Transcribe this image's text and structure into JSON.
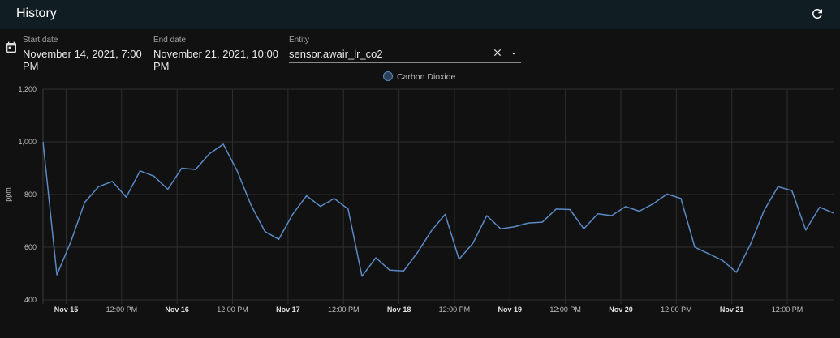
{
  "header": {
    "title": "History"
  },
  "filters": [
    {
      "label": "Start date",
      "value": "November 14, 2021, 7:00 PM"
    },
    {
      "label": "End date",
      "value": "November 21, 2021, 10:00 PM"
    },
    {
      "label": "Entity",
      "value": "sensor.awair_lr_co2"
    }
  ],
  "chart_data": {
    "type": "line",
    "ylabel": "ppm",
    "x": [
      "2021-11-14T19:00",
      "2021-11-14T22:00",
      "2021-11-15T01:00",
      "2021-11-15T04:00",
      "2021-11-15T07:00",
      "2021-11-15T10:00",
      "2021-11-15T13:00",
      "2021-11-15T16:00",
      "2021-11-15T19:00",
      "2021-11-15T22:00",
      "2021-11-16T01:00",
      "2021-11-16T04:00",
      "2021-11-16T07:00",
      "2021-11-16T10:00",
      "2021-11-16T13:00",
      "2021-11-16T16:00",
      "2021-11-16T19:00",
      "2021-11-16T22:00",
      "2021-11-17T01:00",
      "2021-11-17T04:00",
      "2021-11-17T07:00",
      "2021-11-17T10:00",
      "2021-11-17T13:00",
      "2021-11-17T16:00",
      "2021-11-17T19:00",
      "2021-11-17T22:00",
      "2021-11-18T01:00",
      "2021-11-18T04:00",
      "2021-11-18T07:00",
      "2021-11-18T10:00",
      "2021-11-18T13:00",
      "2021-11-18T16:00",
      "2021-11-18T19:00",
      "2021-11-18T22:00",
      "2021-11-19T01:00",
      "2021-11-19T04:00",
      "2021-11-19T07:00",
      "2021-11-19T10:00",
      "2021-11-19T13:00",
      "2021-11-19T16:00",
      "2021-11-19T19:00",
      "2021-11-19T22:00",
      "2021-11-20T01:00",
      "2021-11-20T04:00",
      "2021-11-20T07:00",
      "2021-11-20T10:00",
      "2021-11-20T13:00",
      "2021-11-20T16:00",
      "2021-11-20T19:00",
      "2021-11-20T22:00",
      "2021-11-21T01:00",
      "2021-11-21T04:00",
      "2021-11-21T07:00",
      "2021-11-21T10:00",
      "2021-11-21T13:00",
      "2021-11-21T16:00",
      "2021-11-21T19:00",
      "2021-11-21T22:00"
    ],
    "series": [
      {
        "name": "Carbon Dioxide",
        "color": "#5a8ac6",
        "values": [
          1000,
          495,
          620,
          770,
          830,
          850,
          790,
          890,
          870,
          820,
          900,
          895,
          955,
          991,
          890,
          760,
          660,
          630,
          725,
          795,
          755,
          785,
          745,
          490,
          560,
          513,
          510,
          580,
          662,
          725,
          554,
          615,
          720,
          670,
          678,
          692,
          695,
          745,
          743,
          670,
          727,
          720,
          754,
          737,
          765,
          802,
          785,
          600,
          575,
          550,
          505,
          610,
          740,
          830,
          815,
          665,
          752,
          730
        ]
      }
    ],
    "xlim": [
      "2021-11-14T19:00",
      "2021-11-21T22:00"
    ],
    "xticks": [
      {
        "value": "2021-11-15T00:00",
        "label": "Nov 15"
      },
      {
        "value": "2021-11-15T12:00",
        "label": "12:00 PM"
      },
      {
        "value": "2021-11-16T00:00",
        "label": "Nov 16"
      },
      {
        "value": "2021-11-16T12:00",
        "label": "12:00 PM"
      },
      {
        "value": "2021-11-17T00:00",
        "label": "Nov 17"
      },
      {
        "value": "2021-11-17T12:00",
        "label": "12:00 PM"
      },
      {
        "value": "2021-11-18T00:00",
        "label": "Nov 18"
      },
      {
        "value": "2021-11-18T12:00",
        "label": "12:00 PM"
      },
      {
        "value": "2021-11-19T00:00",
        "label": "Nov 19"
      },
      {
        "value": "2021-11-19T12:00",
        "label": "12:00 PM"
      },
      {
        "value": "2021-11-20T00:00",
        "label": "Nov 20"
      },
      {
        "value": "2021-11-20T12:00",
        "label": "12:00 PM"
      },
      {
        "value": "2021-11-21T00:00",
        "label": "Nov 21"
      },
      {
        "value": "2021-11-21T12:00",
        "label": "12:00 PM"
      }
    ],
    "ylim": [
      400,
      1200
    ],
    "yticks": [
      400,
      600,
      800,
      {
        "value": 1000,
        "label": "1,000"
      },
      {
        "value": 1200,
        "label": "1,200"
      }
    ],
    "grid": true,
    "legend": "top"
  }
}
